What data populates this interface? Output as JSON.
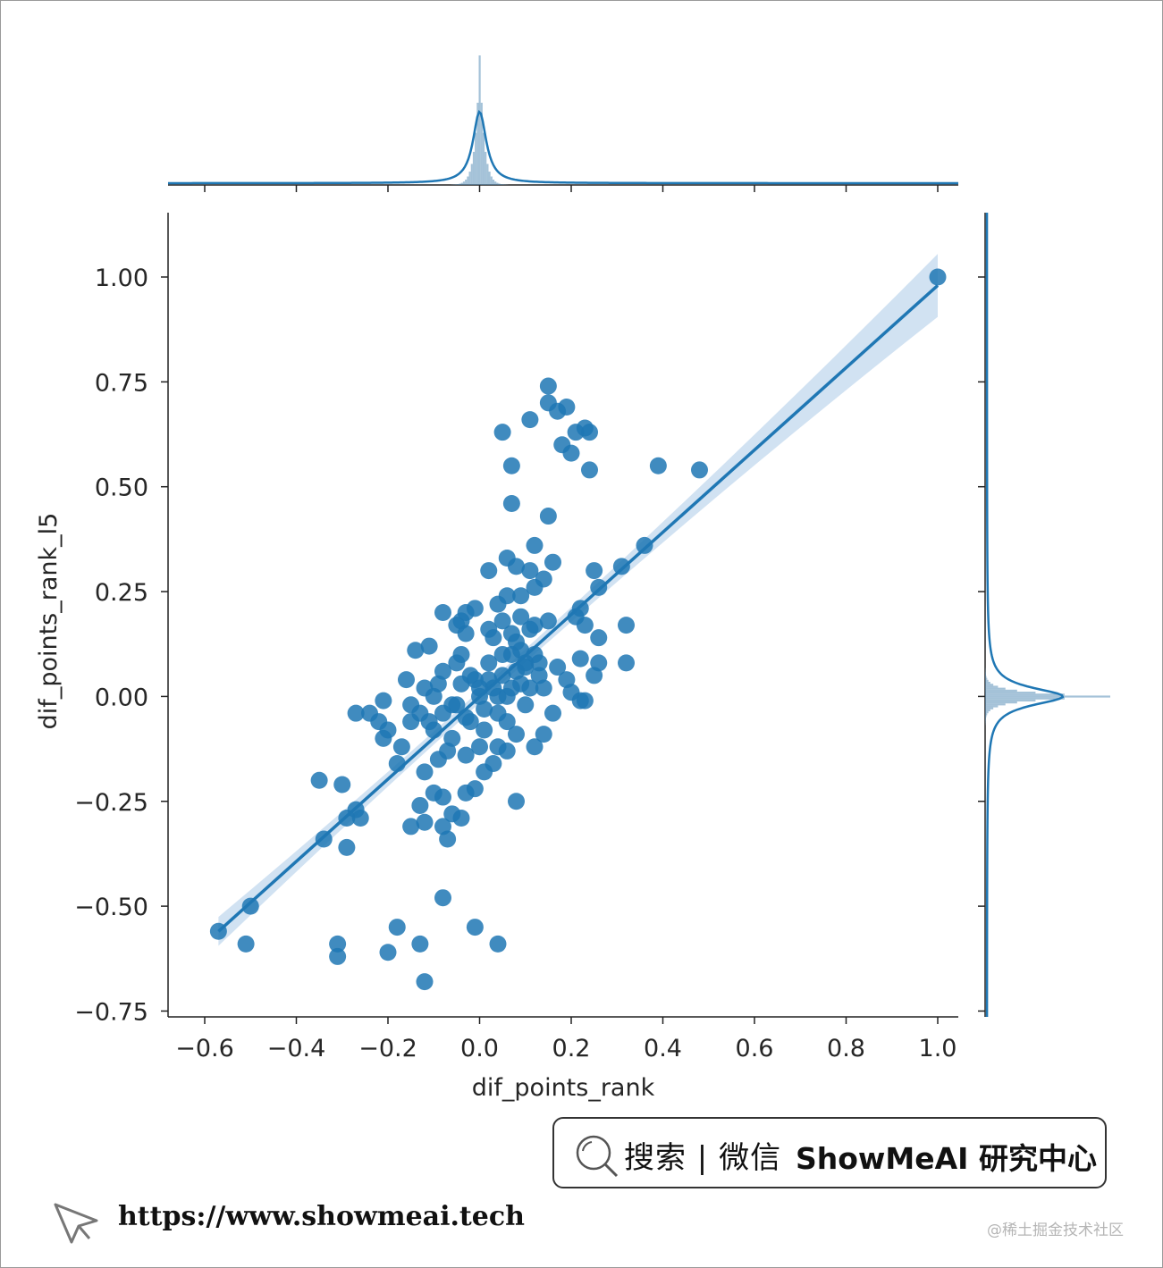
{
  "chart_data": {
    "type": "scatter",
    "subtype": "jointplot-with-regression",
    "xlabel": "dif_points_rank",
    "ylabel": "dif_points_rank_l5",
    "xlim": [
      -0.64,
      1.08
    ],
    "ylim": [
      -0.76,
      1.15
    ],
    "xticks": [
      -0.6,
      -0.4,
      -0.2,
      0.0,
      0.2,
      0.4,
      0.6,
      0.8,
      1.0
    ],
    "xtick_labels": [
      "−0.6",
      "−0.4",
      "−0.2",
      "0.0",
      "0.2",
      "0.4",
      "0.6",
      "0.8",
      "1.0"
    ],
    "yticks": [
      1.0,
      0.75,
      0.5,
      0.25,
      0.0,
      -0.25,
      -0.5,
      -0.75
    ],
    "ytick_labels": [
      "1.00",
      "0.75",
      "0.50",
      "0.25",
      "0.00",
      "−0.25",
      "−0.50",
      "−0.75"
    ],
    "grid": false,
    "color": "#1f77b4",
    "ci_color": "#c6dbef",
    "regression_line": {
      "x": [
        -0.57,
        1.0
      ],
      "y": [
        -0.56,
        0.98
      ]
    },
    "points": [
      [
        1.0,
        1.0
      ],
      [
        0.15,
        0.74
      ],
      [
        0.19,
        0.69
      ],
      [
        0.17,
        0.68
      ],
      [
        0.15,
        0.7
      ],
      [
        0.11,
        0.66
      ],
      [
        0.05,
        0.63
      ],
      [
        0.21,
        0.63
      ],
      [
        0.23,
        0.64
      ],
      [
        0.24,
        0.63
      ],
      [
        0.18,
        0.6
      ],
      [
        0.2,
        0.58
      ],
      [
        0.07,
        0.55
      ],
      [
        0.24,
        0.54
      ],
      [
        0.39,
        0.55
      ],
      [
        0.48,
        0.54
      ],
      [
        0.07,
        0.46
      ],
      [
        0.15,
        0.43
      ],
      [
        0.12,
        0.36
      ],
      [
        0.36,
        0.36
      ],
      [
        0.06,
        0.33
      ],
      [
        0.08,
        0.31
      ],
      [
        0.02,
        0.3
      ],
      [
        0.11,
        0.3
      ],
      [
        0.16,
        0.32
      ],
      [
        0.25,
        0.3
      ],
      [
        0.31,
        0.31
      ],
      [
        0.26,
        0.26
      ],
      [
        0.14,
        0.28
      ],
      [
        0.06,
        0.24
      ],
      [
        0.09,
        0.24
      ],
      [
        0.12,
        0.26
      ],
      [
        -0.08,
        0.2
      ],
      [
        -0.03,
        0.2
      ],
      [
        -0.01,
        0.21
      ],
      [
        0.04,
        0.22
      ],
      [
        -0.04,
        0.18
      ],
      [
        -0.05,
        0.17
      ],
      [
        0.02,
        0.16
      ],
      [
        0.22,
        0.21
      ],
      [
        0.21,
        0.19
      ],
      [
        0.32,
        0.17
      ],
      [
        0.15,
        0.18
      ],
      [
        0.12,
        0.17
      ],
      [
        0.23,
        0.17
      ],
      [
        -0.11,
        0.12
      ],
      [
        -0.14,
        0.11
      ],
      [
        -0.03,
        0.15
      ],
      [
        0.03,
        0.14
      ],
      [
        0.08,
        0.13
      ],
      [
        0.26,
        0.14
      ],
      [
        0.32,
        0.08
      ],
      [
        0.26,
        0.08
      ],
      [
        0.22,
        0.09
      ],
      [
        0.25,
        0.05
      ],
      [
        -0.12,
        0.02
      ],
      [
        -0.15,
        -0.02
      ],
      [
        -0.21,
        -0.01
      ],
      [
        -0.24,
        -0.04
      ],
      [
        -0.27,
        -0.04
      ],
      [
        -0.22,
        -0.06
      ],
      [
        -0.2,
        -0.08
      ],
      [
        -0.21,
        -0.1
      ],
      [
        -0.15,
        -0.06
      ],
      [
        -0.17,
        -0.12
      ],
      [
        -0.18,
        -0.16
      ],
      [
        -0.12,
        -0.18
      ],
      [
        -0.1,
        -0.23
      ],
      [
        -0.13,
        -0.26
      ],
      [
        -0.08,
        -0.24
      ],
      [
        -0.03,
        -0.23
      ],
      [
        -0.01,
        -0.22
      ],
      [
        -0.06,
        -0.28
      ],
      [
        -0.04,
        -0.29
      ],
      [
        -0.08,
        -0.31
      ],
      [
        -0.12,
        -0.3
      ],
      [
        -0.15,
        -0.31
      ],
      [
        -0.07,
        -0.34
      ],
      [
        0.08,
        -0.25
      ],
      [
        -0.35,
        -0.2
      ],
      [
        -0.3,
        -0.21
      ],
      [
        -0.27,
        -0.27
      ],
      [
        -0.26,
        -0.29
      ],
      [
        -0.29,
        -0.29
      ],
      [
        -0.34,
        -0.34
      ],
      [
        -0.29,
        -0.36
      ],
      [
        -0.5,
        -0.5
      ],
      [
        -0.57,
        -0.56
      ],
      [
        -0.51,
        -0.59
      ],
      [
        -0.31,
        -0.59
      ],
      [
        -0.31,
        -0.62
      ],
      [
        -0.2,
        -0.61
      ],
      [
        -0.18,
        -0.55
      ],
      [
        -0.13,
        -0.59
      ],
      [
        -0.12,
        -0.68
      ],
      [
        -0.08,
        -0.48
      ],
      [
        -0.01,
        -0.55
      ],
      [
        0.04,
        -0.59
      ],
      [
        0.12,
        -0.12
      ],
      [
        0.14,
        -0.09
      ],
      [
        0.08,
        -0.09
      ],
      [
        0.06,
        -0.13
      ],
      [
        0.03,
        -0.16
      ],
      [
        0.01,
        -0.18
      ],
      [
        0.04,
        -0.12
      ],
      [
        0.16,
        -0.04
      ],
      [
        0.23,
        -0.01
      ],
      [
        0.22,
        -0.01
      ],
      [
        0.19,
        0.04
      ],
      [
        0.17,
        0.07
      ],
      [
        0.2,
        0.01
      ],
      [
        0.1,
        0.07
      ],
      [
        0.13,
        0.05
      ],
      [
        0.14,
        0.02
      ],
      [
        0.05,
        0.1
      ],
      [
        0.02,
        0.04
      ],
      [
        0.0,
        0.02
      ],
      [
        -0.02,
        0.05
      ],
      [
        -0.05,
        0.08
      ],
      [
        -0.08,
        0.06
      ],
      [
        -0.09,
        0.03
      ],
      [
        -0.06,
        -0.02
      ],
      [
        -0.03,
        -0.05
      ],
      [
        0.01,
        -0.03
      ],
      [
        0.04,
        0.0
      ],
      [
        0.07,
        0.02
      ],
      [
        0.1,
        -0.02
      ],
      [
        0.06,
        -0.06
      ],
      [
        -0.1,
        -0.08
      ],
      [
        -0.13,
        -0.04
      ],
      [
        -0.16,
        0.04
      ],
      [
        -0.1,
        0.0
      ],
      [
        -0.04,
        0.1
      ],
      [
        0.09,
        0.11
      ],
      [
        0.11,
        0.16
      ]
    ],
    "marginal_x": {
      "type": "hist-kde",
      "peak_at": 0.0
    },
    "marginal_y": {
      "type": "hist-kde",
      "peak_at": 0.0
    }
  },
  "search_box": {
    "icon": "search-icon",
    "label": "搜索 | 微信",
    "brand": "ShowMeAI 研究中心"
  },
  "footer": {
    "icon": "cursor-pointer-icon",
    "url": "https://www.showmeai.tech"
  },
  "watermark": "@稀土掘金技术社区"
}
